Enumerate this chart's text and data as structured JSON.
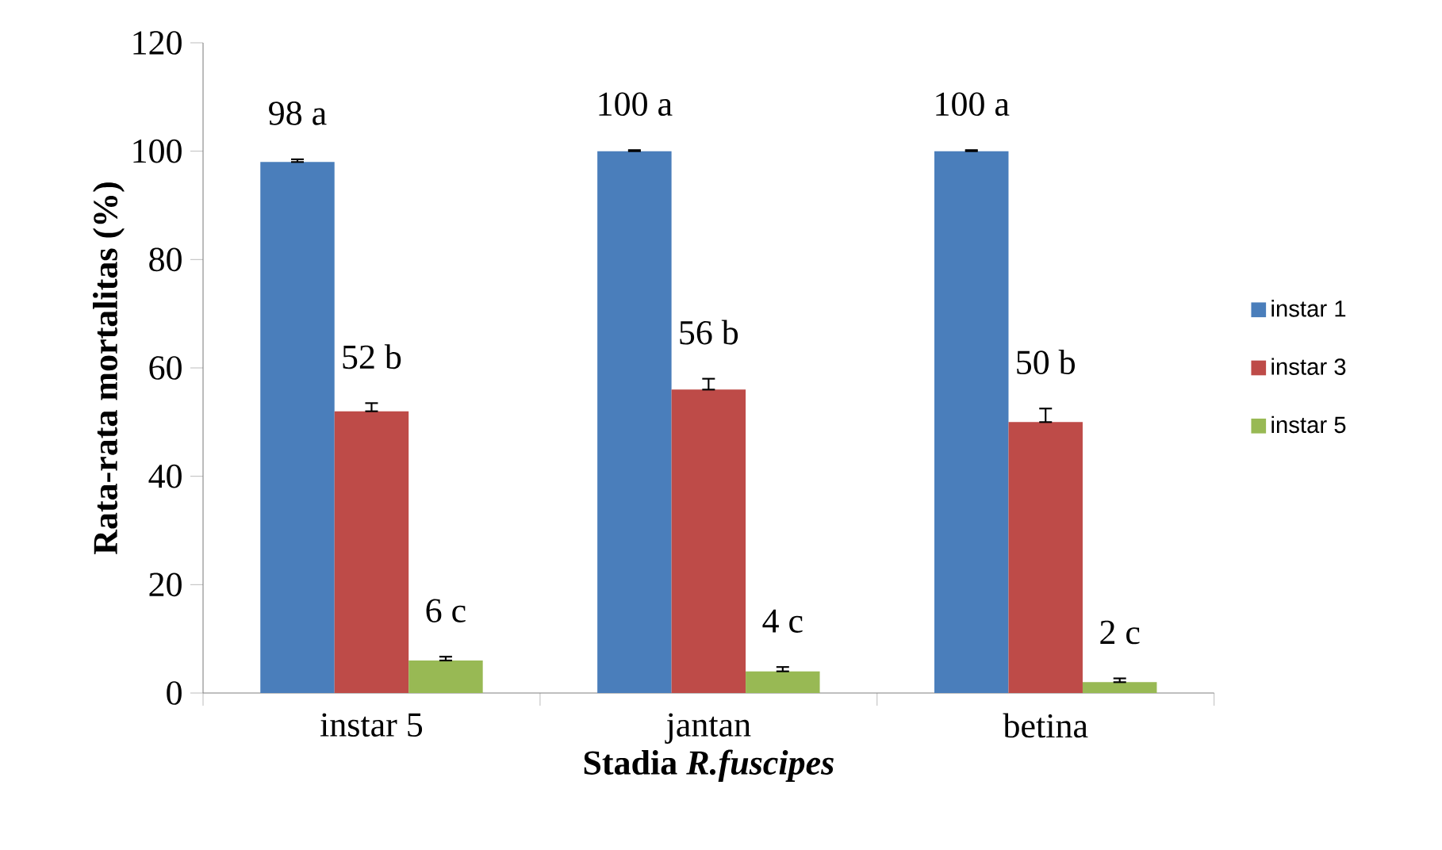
{
  "chart_data": {
    "type": "bar",
    "xlabel": "Stadia *R.fuscipes*",
    "ylabel": "Rata-rata mortalitas (%)",
    "categories": [
      "instar 5",
      "jantan",
      "betina"
    ],
    "series": [
      {
        "name": "instar 1",
        "color": "#4a7ebb",
        "values": [
          98,
          100,
          100
        ],
        "errors": [
          [
            98,
            98.5
          ],
          [
            100,
            100.2
          ],
          [
            100,
            100.2
          ]
        ],
        "value_labels": [
          "98  a",
          "100  a",
          "100  a"
        ]
      },
      {
        "name": "instar 3",
        "color": "#be4b48",
        "values": [
          52,
          56,
          50
        ],
        "errors": [
          [
            52,
            53.5
          ],
          [
            56,
            58
          ],
          [
            50,
            52.5
          ]
        ],
        "value_labels": [
          "52  b",
          "56  b",
          "50  b"
        ]
      },
      {
        "name": "instar 5",
        "color": "#98b954",
        "values": [
          6,
          4,
          2
        ],
        "errors": [
          [
            6,
            6.7
          ],
          [
            4,
            4.8
          ],
          [
            2,
            2.7
          ]
        ],
        "value_labels": [
          "6  c",
          "4  c",
          "2  c"
        ]
      }
    ],
    "ylim": [
      0,
      120
    ],
    "yticks": [
      0,
      20,
      40,
      60,
      80,
      100,
      120
    ],
    "grid": false,
    "legend": "right"
  }
}
